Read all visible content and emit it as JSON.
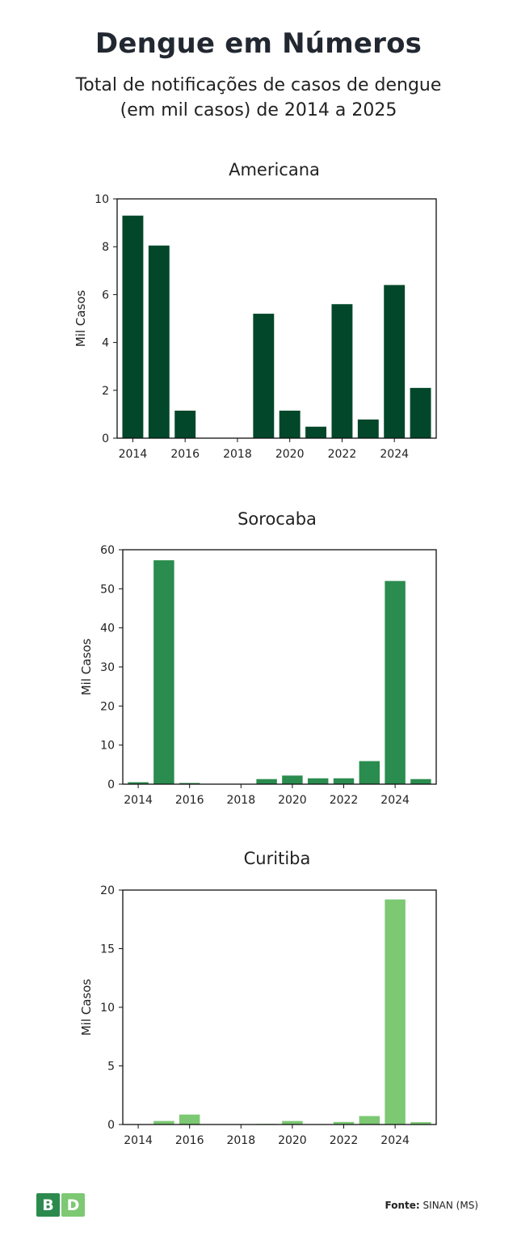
{
  "page": {
    "title": "Dengue em Números",
    "subtitle_line1": "Total de notificações de casos de dengue",
    "subtitle_line2": "(em mil casos) de 2014 a 2025"
  },
  "footer": {
    "logo_b": "B",
    "logo_d": "D",
    "source_label": "Fonte:",
    "source_value": "SINAN (MS)"
  },
  "chart_data": [
    {
      "type": "bar",
      "title": "Americana",
      "ylabel": "Mil Casos",
      "xlabel": "",
      "categories": [
        2014,
        2015,
        2016,
        2017,
        2018,
        2019,
        2020,
        2021,
        2022,
        2023,
        2024,
        2025
      ],
      "values": [
        9.3,
        8.05,
        1.15,
        0.0,
        0.0,
        5.2,
        1.15,
        0.48,
        5.6,
        0.78,
        6.4,
        2.1
      ],
      "xticks": [
        2014,
        2016,
        2018,
        2020,
        2022,
        2024
      ],
      "yticks": [
        0,
        2,
        4,
        6,
        8,
        10
      ],
      "ylim": [
        0,
        10
      ],
      "color": "#02472a"
    },
    {
      "type": "bar",
      "title": "Sorocaba",
      "ylabel": "Mil Casos",
      "xlabel": "",
      "categories": [
        2014,
        2015,
        2016,
        2017,
        2018,
        2019,
        2020,
        2021,
        2022,
        2023,
        2024,
        2025
      ],
      "values": [
        0.5,
        57.3,
        0.3,
        0.0,
        0.0,
        1.3,
        2.2,
        1.5,
        1.5,
        5.9,
        52.0,
        1.3
      ],
      "xticks": [
        2014,
        2016,
        2018,
        2020,
        2022,
        2024
      ],
      "yticks": [
        0,
        10,
        20,
        30,
        40,
        50,
        60
      ],
      "ylim": [
        0,
        60
      ],
      "color": "#2a8c4e"
    },
    {
      "type": "bar",
      "title": "Curitiba",
      "ylabel": "Mil Casos",
      "xlabel": "",
      "categories": [
        2014,
        2015,
        2016,
        2017,
        2018,
        2019,
        2020,
        2021,
        2022,
        2023,
        2024,
        2025
      ],
      "values": [
        0.0,
        0.3,
        0.85,
        0.0,
        0.0,
        0.05,
        0.3,
        0.0,
        0.22,
        0.72,
        19.2,
        0.2
      ],
      "xticks": [
        2014,
        2016,
        2018,
        2020,
        2022,
        2024
      ],
      "yticks": [
        0,
        5,
        10,
        15,
        20
      ],
      "ylim": [
        0,
        20
      ],
      "color": "#7cc873"
    }
  ]
}
